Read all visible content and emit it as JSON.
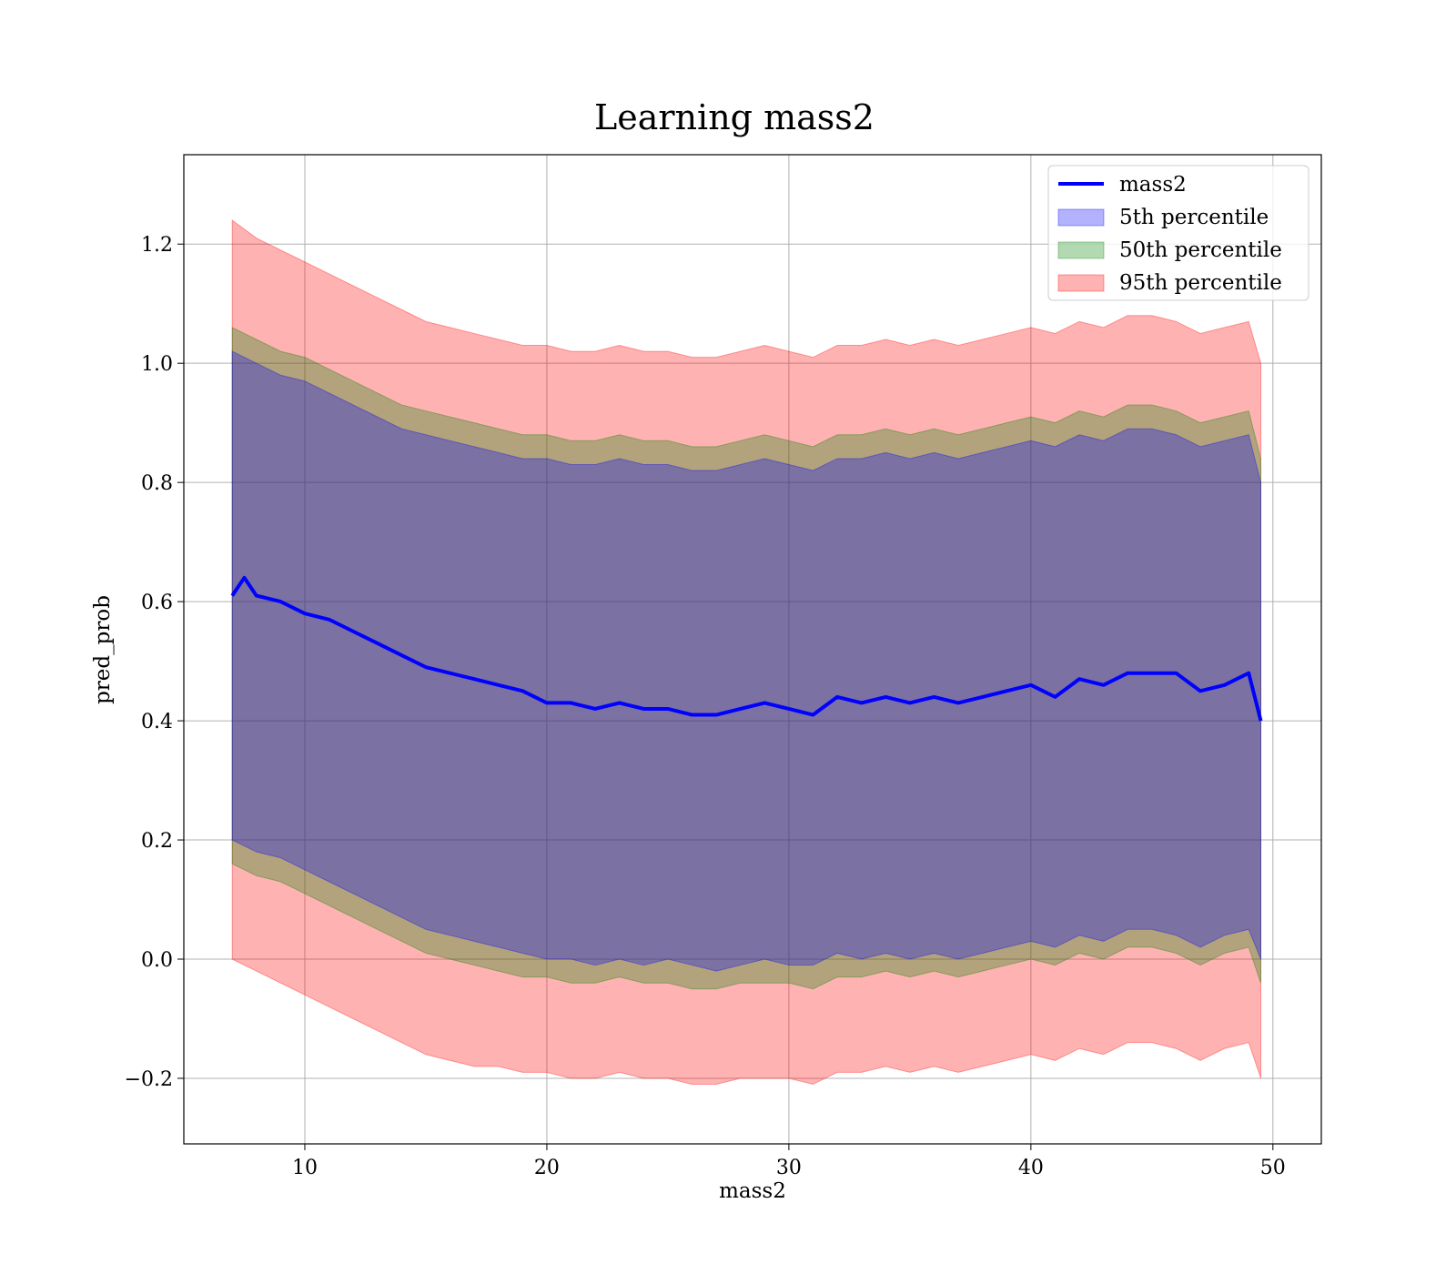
{
  "chart_data": {
    "type": "line",
    "title": "Learning mass2",
    "xlabel": "mass2",
    "ylabel": "pred_prob",
    "xlim": [
      5,
      52
    ],
    "ylim": [
      -0.31,
      1.35
    ],
    "grid": true,
    "legend_position": "top-right",
    "xticks": [
      10,
      20,
      30,
      40,
      50
    ],
    "yticks": [
      -0.2,
      0.0,
      0.2,
      0.4,
      0.6,
      0.8,
      1.0,
      1.2
    ],
    "ytick_labels": [
      "−0.2",
      "0.0",
      "0.2",
      "0.4",
      "0.6",
      "0.8",
      "1.0",
      "1.2"
    ],
    "series": [
      {
        "name": "mass2",
        "kind": "line",
        "color": "#0000ff",
        "x": [
          7,
          7.5,
          8,
          9,
          10,
          11,
          12,
          13,
          14,
          15,
          16,
          17,
          18,
          19,
          20,
          21,
          22,
          23,
          24,
          25,
          26,
          27,
          28,
          29,
          30,
          31,
          32,
          33,
          34,
          35,
          36,
          37,
          38,
          39,
          40,
          41,
          42,
          43,
          44,
          45,
          46,
          47,
          48,
          49,
          49.5
        ],
        "y": [
          0.61,
          0.64,
          0.61,
          0.6,
          0.58,
          0.57,
          0.55,
          0.53,
          0.51,
          0.49,
          0.48,
          0.47,
          0.46,
          0.45,
          0.43,
          0.43,
          0.42,
          0.43,
          0.42,
          0.42,
          0.41,
          0.41,
          0.42,
          0.43,
          0.42,
          0.41,
          0.44,
          0.43,
          0.44,
          0.43,
          0.44,
          0.43,
          0.44,
          0.45,
          0.46,
          0.44,
          0.47,
          0.46,
          0.48,
          0.48,
          0.48,
          0.45,
          0.46,
          0.48,
          0.4
        ]
      },
      {
        "name": "5th percentile",
        "kind": "band",
        "color": "#0000ff",
        "x": [
          7,
          8,
          9,
          10,
          11,
          12,
          13,
          14,
          15,
          16,
          17,
          18,
          19,
          20,
          21,
          22,
          23,
          24,
          25,
          26,
          27,
          28,
          29,
          30,
          31,
          32,
          33,
          34,
          35,
          36,
          37,
          38,
          39,
          40,
          41,
          42,
          43,
          44,
          45,
          46,
          47,
          48,
          49,
          49.5
        ],
        "lower": [
          0.2,
          0.18,
          0.17,
          0.15,
          0.13,
          0.11,
          0.09,
          0.07,
          0.05,
          0.04,
          0.03,
          0.02,
          0.01,
          0.0,
          0.0,
          -0.01,
          0.0,
          -0.01,
          0.0,
          -0.01,
          -0.02,
          -0.01,
          0.0,
          -0.01,
          -0.01,
          0.01,
          0.0,
          0.01,
          0.0,
          0.01,
          0.0,
          0.01,
          0.02,
          0.03,
          0.02,
          0.04,
          0.03,
          0.05,
          0.05,
          0.04,
          0.02,
          0.04,
          0.05,
          0.0
        ],
        "upper": [
          1.02,
          1.0,
          0.98,
          0.97,
          0.95,
          0.93,
          0.91,
          0.89,
          0.88,
          0.87,
          0.86,
          0.85,
          0.84,
          0.84,
          0.83,
          0.83,
          0.84,
          0.83,
          0.83,
          0.82,
          0.82,
          0.83,
          0.84,
          0.83,
          0.82,
          0.84,
          0.84,
          0.85,
          0.84,
          0.85,
          0.84,
          0.85,
          0.86,
          0.87,
          0.86,
          0.88,
          0.87,
          0.89,
          0.89,
          0.88,
          0.86,
          0.87,
          0.88,
          0.8
        ]
      },
      {
        "name": "50th percentile",
        "kind": "band",
        "color": "#008000",
        "x": [
          7,
          8,
          9,
          10,
          11,
          12,
          13,
          14,
          15,
          16,
          17,
          18,
          19,
          20,
          21,
          22,
          23,
          24,
          25,
          26,
          27,
          28,
          29,
          30,
          31,
          32,
          33,
          34,
          35,
          36,
          37,
          38,
          39,
          40,
          41,
          42,
          43,
          44,
          45,
          46,
          47,
          48,
          49,
          49.5
        ],
        "lower": [
          0.16,
          0.14,
          0.13,
          0.11,
          0.09,
          0.07,
          0.05,
          0.03,
          0.01,
          0.0,
          -0.01,
          -0.02,
          -0.03,
          -0.03,
          -0.04,
          -0.04,
          -0.03,
          -0.04,
          -0.04,
          -0.05,
          -0.05,
          -0.04,
          -0.04,
          -0.04,
          -0.05,
          -0.03,
          -0.03,
          -0.02,
          -0.03,
          -0.02,
          -0.03,
          -0.02,
          -0.01,
          0.0,
          -0.01,
          0.01,
          0.0,
          0.02,
          0.02,
          0.01,
          -0.01,
          0.01,
          0.02,
          -0.04
        ],
        "upper": [
          1.06,
          1.04,
          1.02,
          1.01,
          0.99,
          0.97,
          0.95,
          0.93,
          0.92,
          0.91,
          0.9,
          0.89,
          0.88,
          0.88,
          0.87,
          0.87,
          0.88,
          0.87,
          0.87,
          0.86,
          0.86,
          0.87,
          0.88,
          0.87,
          0.86,
          0.88,
          0.88,
          0.89,
          0.88,
          0.89,
          0.88,
          0.89,
          0.9,
          0.91,
          0.9,
          0.92,
          0.91,
          0.93,
          0.93,
          0.92,
          0.9,
          0.91,
          0.92,
          0.84
        ]
      },
      {
        "name": "95th percentile",
        "kind": "band",
        "color": "#ff0000",
        "x": [
          7,
          8,
          9,
          10,
          11,
          12,
          13,
          14,
          15,
          16,
          17,
          18,
          19,
          20,
          21,
          22,
          23,
          24,
          25,
          26,
          27,
          28,
          29,
          30,
          31,
          32,
          33,
          34,
          35,
          36,
          37,
          38,
          39,
          40,
          41,
          42,
          43,
          44,
          45,
          46,
          47,
          48,
          49,
          49.5
        ],
        "lower": [
          0.0,
          -0.02,
          -0.04,
          -0.06,
          -0.08,
          -0.1,
          -0.12,
          -0.14,
          -0.16,
          -0.17,
          -0.18,
          -0.18,
          -0.19,
          -0.19,
          -0.2,
          -0.2,
          -0.19,
          -0.2,
          -0.2,
          -0.21,
          -0.21,
          -0.2,
          -0.2,
          -0.2,
          -0.21,
          -0.19,
          -0.19,
          -0.18,
          -0.19,
          -0.18,
          -0.19,
          -0.18,
          -0.17,
          -0.16,
          -0.17,
          -0.15,
          -0.16,
          -0.14,
          -0.14,
          -0.15,
          -0.17,
          -0.15,
          -0.14,
          -0.2
        ],
        "upper": [
          1.24,
          1.21,
          1.19,
          1.17,
          1.15,
          1.13,
          1.11,
          1.09,
          1.07,
          1.06,
          1.05,
          1.04,
          1.03,
          1.03,
          1.02,
          1.02,
          1.03,
          1.02,
          1.02,
          1.01,
          1.01,
          1.02,
          1.03,
          1.02,
          1.01,
          1.03,
          1.03,
          1.04,
          1.03,
          1.04,
          1.03,
          1.04,
          1.05,
          1.06,
          1.05,
          1.07,
          1.06,
          1.08,
          1.08,
          1.07,
          1.05,
          1.06,
          1.07,
          1.0
        ]
      }
    ]
  }
}
